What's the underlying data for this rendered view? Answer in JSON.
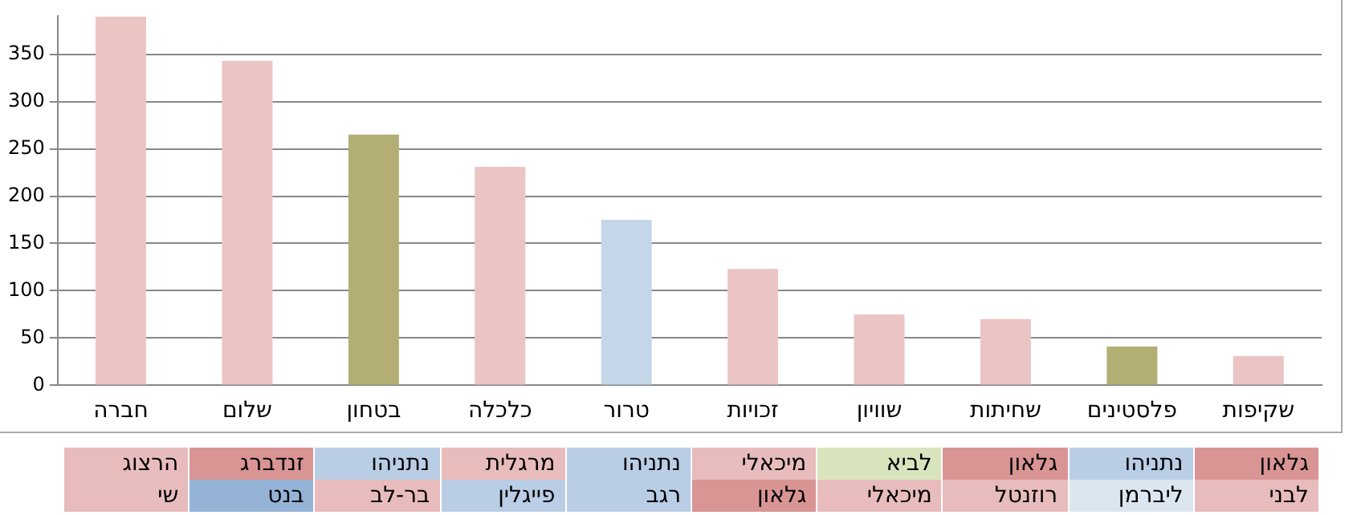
{
  "chart_data": {
    "type": "bar",
    "categories": [
      "חברה",
      "שלום",
      "בטחון",
      "כלכלה",
      "טרור",
      "זכויות",
      "שוויון",
      "שחיתות",
      "פלסטינים",
      "שקיפות"
    ],
    "values": [
      390,
      343,
      265,
      231,
      175,
      123,
      75,
      70,
      41,
      31
    ],
    "colors": [
      "#ebc4c4",
      "#ebc4c4",
      "#b3ae74",
      "#ebc4c4",
      "#c5d6e9",
      "#ebc4c4",
      "#ebc4c4",
      "#ebc4c4",
      "#b3ae74",
      "#ebc4c4"
    ],
    "ylim": [
      0,
      390
    ],
    "yticks": [
      0,
      50,
      100,
      150,
      200,
      250,
      300,
      350
    ],
    "grid": "y",
    "legend": false,
    "annotations": [
      "הרצוג",
      "זנדברג",
      "נתניהו",
      "מרגלית",
      "נתניהו",
      "מיכאלי",
      "לביא",
      "גלאון",
      "נתניהו",
      "גלאון",
      "שי",
      "בנט",
      "בר-לב",
      "פייגלין",
      "רגב",
      "גלאון",
      "מיכאלי",
      "רוזנטל",
      "ליברמן",
      "לבני"
    ]
  }
}
